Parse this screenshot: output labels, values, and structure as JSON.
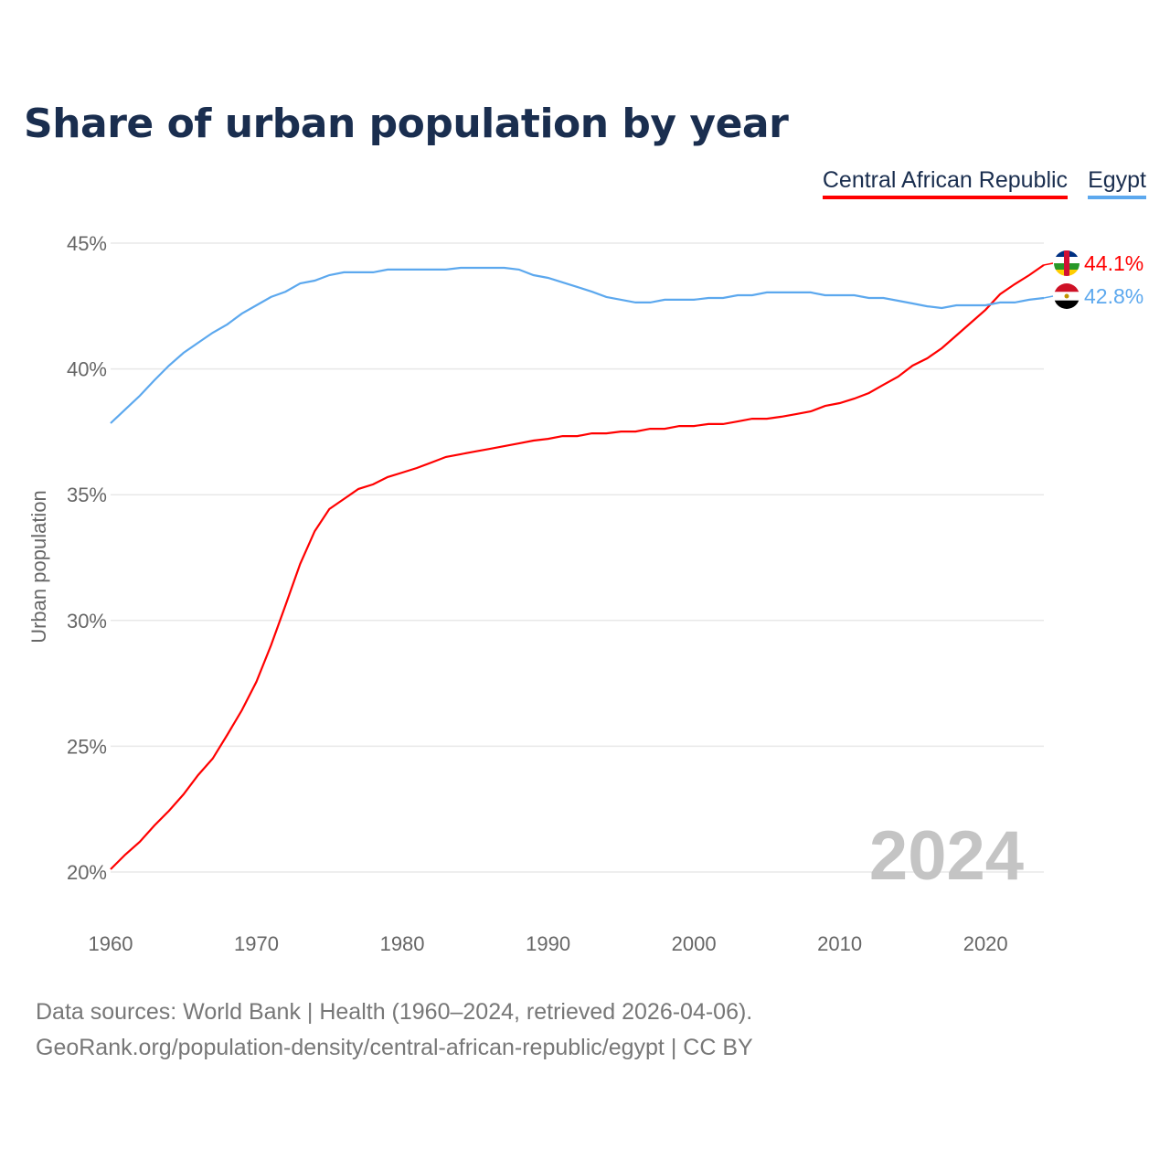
{
  "title": "Share of urban population by year",
  "footer": {
    "line1": "Data sources: World Bank | Health (1960–2024, retrieved 2026-04-06).",
    "line2": "GeoRank.org/population-density/central-african-republic/egypt | CC BY"
  },
  "chart_data": {
    "type": "line",
    "title": "Share of urban population by year",
    "xlabel": "",
    "ylabel": "Urban population",
    "xlim": [
      1960,
      2024
    ],
    "ylim": [
      20,
      45
    ],
    "x_ticks": [
      1960,
      1970,
      1980,
      1990,
      2000,
      2010,
      2020
    ],
    "y_ticks": [
      20,
      25,
      30,
      35,
      40,
      45
    ],
    "y_tick_labels": [
      "20%",
      "25%",
      "30%",
      "35%",
      "40%",
      "45%"
    ],
    "x_tick_labels": [
      "1960",
      "1970",
      "1980",
      "1990",
      "2000",
      "2010",
      "2020"
    ],
    "grid": true,
    "legend_position": "top-right",
    "year_watermark": "2024",
    "x": [
      1960,
      1961,
      1962,
      1963,
      1964,
      1965,
      1966,
      1967,
      1968,
      1969,
      1970,
      1971,
      1972,
      1973,
      1974,
      1975,
      1976,
      1977,
      1978,
      1979,
      1980,
      1981,
      1982,
      1983,
      1984,
      1985,
      1986,
      1987,
      1988,
      1989,
      1990,
      1991,
      1992,
      1993,
      1994,
      1995,
      1996,
      1997,
      1998,
      1999,
      2000,
      2001,
      2002,
      2003,
      2004,
      2005,
      2006,
      2007,
      2008,
      2009,
      2010,
      2011,
      2012,
      2013,
      2014,
      2015,
      2016,
      2017,
      2018,
      2019,
      2020,
      2021,
      2022,
      2023,
      2024
    ],
    "series": [
      {
        "name": "Central African Republic",
        "color": "#ff0000",
        "end_label": "44.1%",
        "flag": "central-african-republic",
        "values": [
          20.11,
          20.69,
          21.2,
          21.85,
          22.43,
          23.09,
          23.85,
          24.51,
          25.45,
          26.43,
          27.56,
          29.01,
          30.61,
          32.25,
          33.55,
          34.43,
          34.83,
          35.23,
          35.41,
          35.7,
          35.88,
          36.06,
          36.28,
          36.5,
          36.61,
          36.72,
          36.82,
          36.93,
          37.04,
          37.15,
          37.22,
          37.33,
          37.33,
          37.44,
          37.44,
          37.51,
          37.51,
          37.62,
          37.62,
          37.73,
          37.73,
          37.81,
          37.81,
          37.91,
          38.02,
          38.02,
          38.1,
          38.2,
          38.31,
          38.53,
          38.64,
          38.82,
          39.04,
          39.37,
          39.69,
          40.13,
          40.42,
          40.82,
          41.33,
          41.84,
          42.35,
          42.97,
          43.37,
          43.73,
          44.13
        ]
      },
      {
        "name": "Egypt",
        "color": "#5ca8ee",
        "end_label": "42.8%",
        "flag": "egypt",
        "values": [
          37.84,
          38.39,
          38.93,
          39.55,
          40.13,
          40.64,
          41.04,
          41.44,
          41.77,
          42.2,
          42.53,
          42.86,
          43.07,
          43.4,
          43.51,
          43.73,
          43.84,
          43.84,
          43.84,
          43.95,
          43.95,
          43.95,
          43.95,
          43.95,
          44.02,
          44.02,
          44.02,
          44.02,
          43.95,
          43.73,
          43.62,
          43.44,
          43.26,
          43.07,
          42.86,
          42.75,
          42.64,
          42.64,
          42.75,
          42.75,
          42.75,
          42.82,
          42.82,
          42.93,
          42.93,
          43.04,
          43.04,
          43.04,
          43.04,
          42.93,
          42.93,
          42.93,
          42.82,
          42.82,
          42.71,
          42.6,
          42.49,
          42.42,
          42.53,
          42.53,
          42.53,
          42.64,
          42.64,
          42.75,
          42.82
        ]
      }
    ]
  }
}
